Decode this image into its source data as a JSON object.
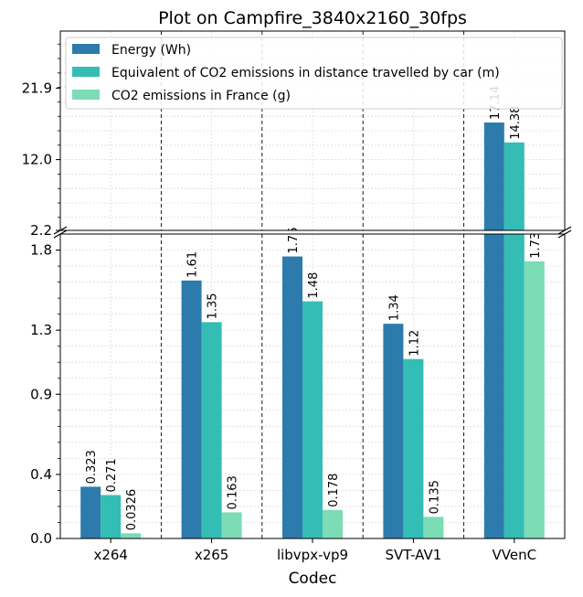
{
  "chart_data": {
    "type": "bar",
    "title": "Plot on Campfire_3840x2160_30fps",
    "xlabel": "Codec",
    "ylabel": "",
    "categories": [
      "x264",
      "x265",
      "libvpx-vp9",
      "SVT-AV1",
      "VVenC"
    ],
    "series": [
      {
        "name": "Energy (Wh)",
        "values": [
          0.323,
          1.61,
          1.76,
          1.34,
          17.14
        ],
        "labels": [
          "0.323",
          "1.61",
          "1.76",
          "1.34",
          "17.14"
        ],
        "color": "#2c7bac"
      },
      {
        "name": "Equivalent of CO2 emissions in distance travelled by car (m)",
        "values": [
          0.271,
          1.35,
          1.48,
          1.12,
          14.38
        ],
        "labels": [
          "0.271",
          "1.35",
          "1.48",
          "1.12",
          "14.38"
        ],
        "color": "#34bdb5"
      },
      {
        "name": "CO2 emissions in France (g)",
        "values": [
          0.0326,
          0.163,
          0.178,
          0.135,
          1.73
        ],
        "labels": [
          "0.0326",
          "0.163",
          "0.178",
          "0.135",
          "1.73"
        ],
        "color": "#7cdcb5"
      }
    ],
    "broken_axis": true,
    "lower_ylim": [
      0,
      1.9
    ],
    "upper_ylim": [
      2.2,
      29.8
    ],
    "lower_yticks": [
      "0.0",
      "0.4",
      "0.9",
      "1.3",
      "1.8"
    ],
    "lower_ytick_values": [
      0.0,
      0.4,
      0.9,
      1.3,
      1.8
    ],
    "upper_yticks": [
      "2.2",
      "12.0",
      "21.9"
    ],
    "upper_ytick_values": [
      2.2,
      12.0,
      21.9
    ],
    "grid": true,
    "legend_position": "top"
  }
}
